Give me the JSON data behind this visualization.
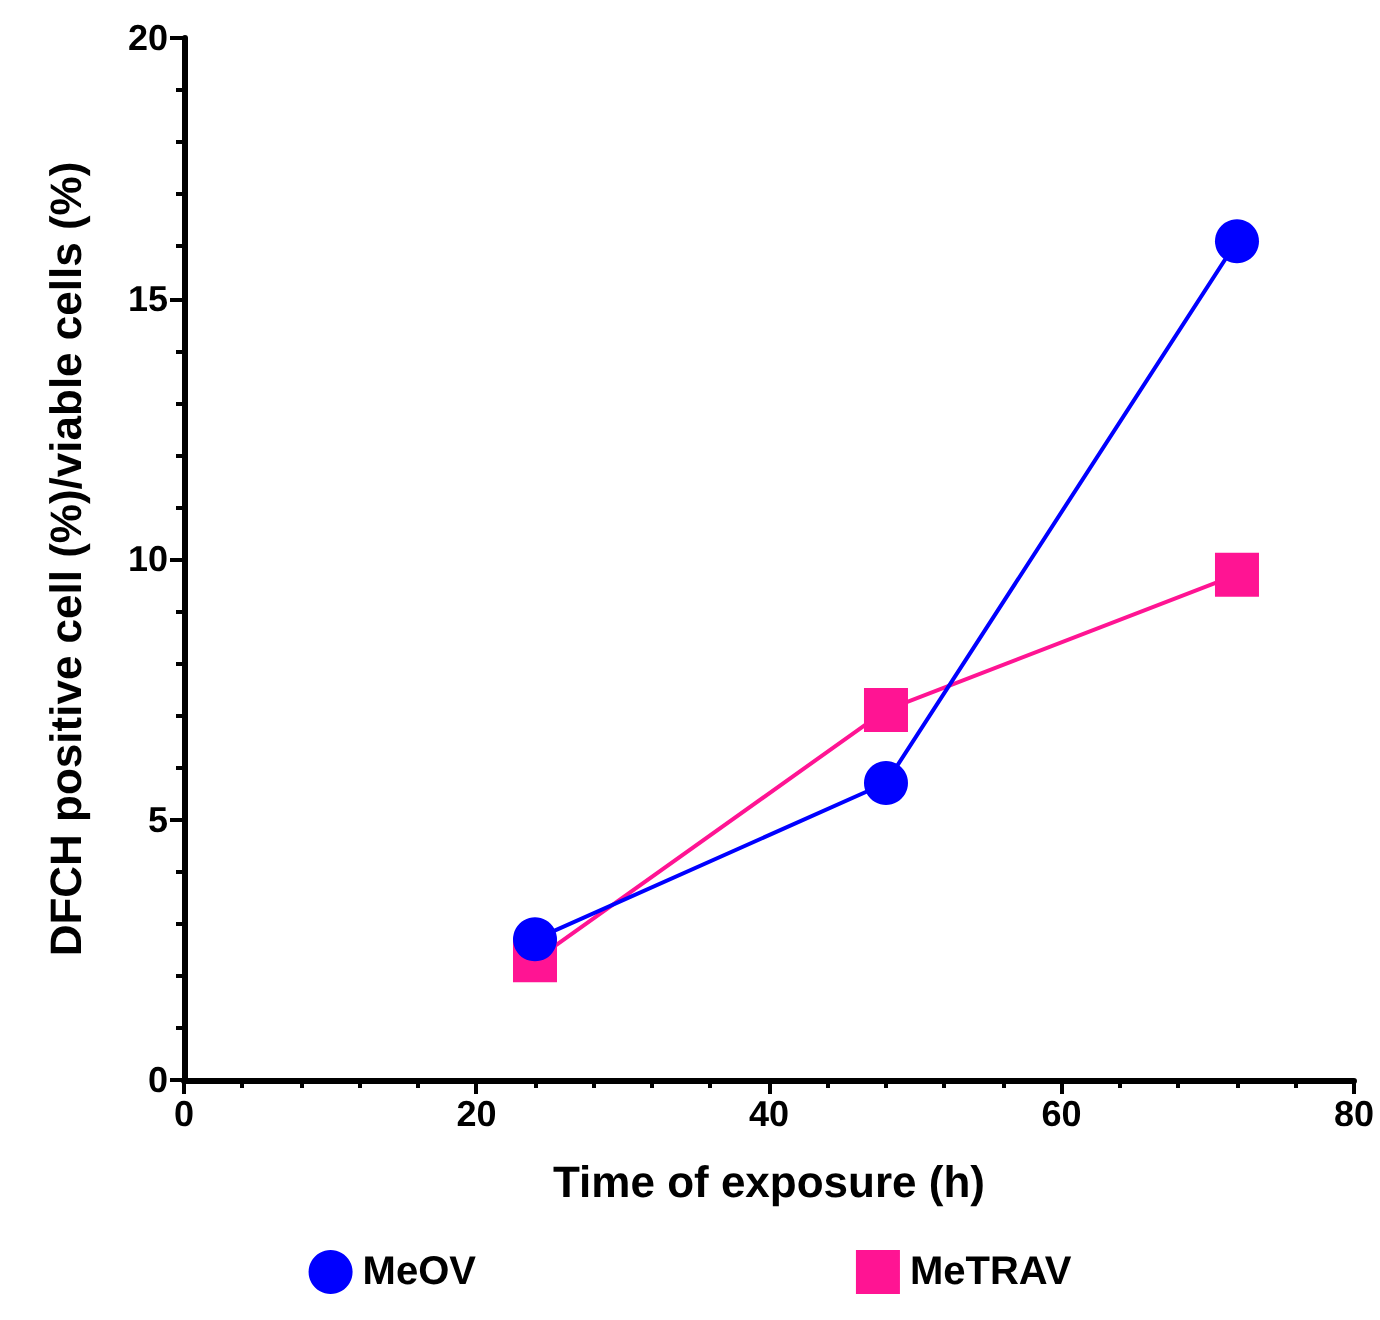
{
  "chart_data": {
    "type": "line",
    "xlabel": "Time of exposure (h)",
    "ylabel": "DFCH positive cell (%)/viable cells (%)",
    "x": [
      24,
      48,
      72
    ],
    "series": [
      {
        "name": "MeOV",
        "color": "#0000ff",
        "marker": "circle",
        "values": [
          2.7,
          5.7,
          16.1
        ]
      },
      {
        "name": "MeTRAV",
        "color": "#ff1493",
        "marker": "square",
        "values": [
          2.3,
          7.1,
          9.7
        ]
      }
    ],
    "xlim": [
      0,
      80
    ],
    "xticks": [
      0,
      20,
      40,
      60,
      80
    ],
    "ylim": [
      0,
      20
    ],
    "yticks": [
      0,
      5,
      10,
      15,
      20
    ],
    "grid": false,
    "legend": "bottom",
    "line_style": "solid"
  }
}
